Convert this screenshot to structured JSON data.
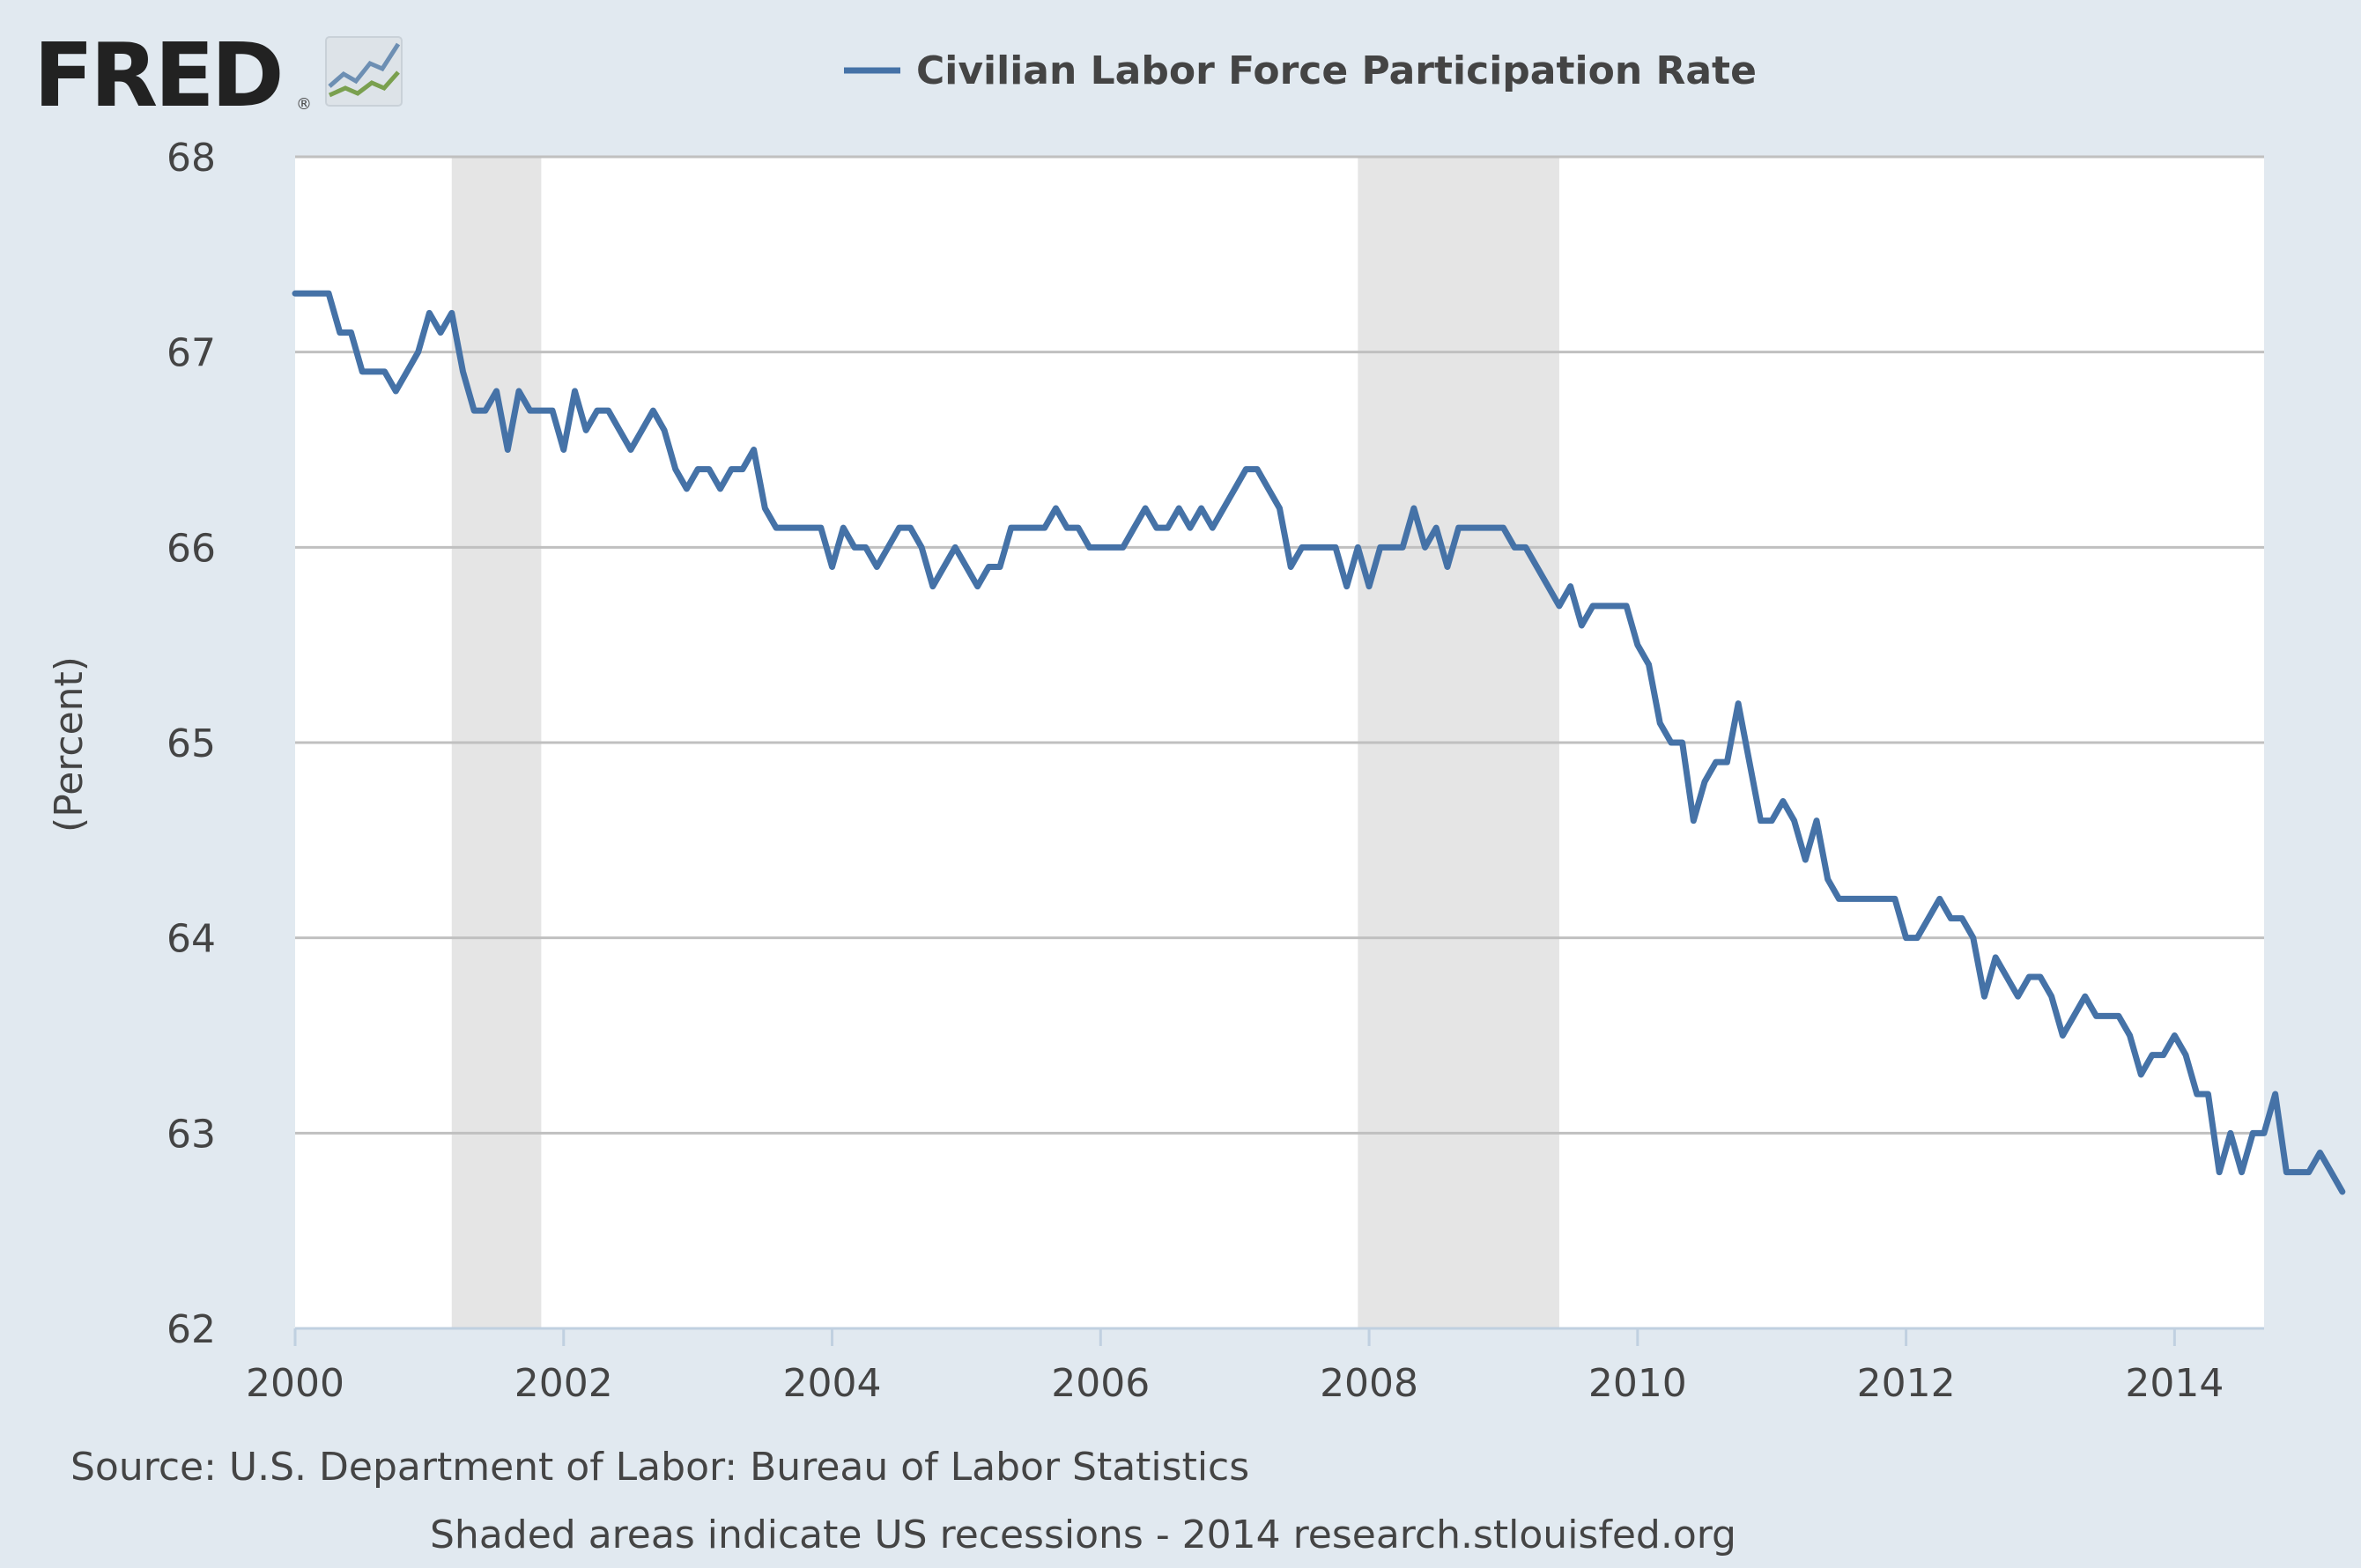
{
  "colors": {
    "background": "#e1e9f0",
    "plot_background": "#ffffff",
    "series": "#4572a7",
    "recession": "#e5e5e5",
    "grid": "#c0c0c0",
    "text": "#444444",
    "logo": "#222222"
  },
  "logo": {
    "text": "FRED",
    "mark": "®",
    "icon": "fred-chart-logo-icon"
  },
  "legend": {
    "label": "Civilian Labor Force Participation Rate",
    "placement": "top-center"
  },
  "footer": {
    "source": "Source: U.S. Department of Labor: Bureau of Labor Statistics",
    "note": "Shaded areas indicate US recessions - 2014 research.stlouisfed.org"
  },
  "chart_data": {
    "type": "line",
    "ylabel": "(Percent)",
    "xlabel": "",
    "ylim": [
      62,
      68
    ],
    "xlim": [
      2000.0,
      2014.667
    ],
    "x_ticks": [
      "2000",
      "2002",
      "2004",
      "2006",
      "2008",
      "2010",
      "2012",
      "2014"
    ],
    "y_ticks": [
      "62",
      "63",
      "64",
      "65",
      "66",
      "67",
      "68"
    ],
    "grid": "horizontal",
    "recessions": [
      {
        "start": "2001-03",
        "end": "2001-11"
      },
      {
        "start": "2007-12",
        "end": "2009-06"
      }
    ],
    "series": [
      {
        "name": "Civilian Labor Force Participation Rate",
        "start": "2000-01",
        "frequency": "monthly",
        "values": [
          67.3,
          67.3,
          67.3,
          67.3,
          67.1,
          67.1,
          66.9,
          66.9,
          66.9,
          66.8,
          66.9,
          67.0,
          67.2,
          67.1,
          67.2,
          66.9,
          66.7,
          66.7,
          66.8,
          66.5,
          66.8,
          66.7,
          66.7,
          66.7,
          66.5,
          66.8,
          66.6,
          66.7,
          66.7,
          66.6,
          66.5,
          66.6,
          66.7,
          66.6,
          66.4,
          66.3,
          66.4,
          66.4,
          66.3,
          66.4,
          66.4,
          66.5,
          66.2,
          66.1,
          66.1,
          66.1,
          66.1,
          66.1,
          65.9,
          66.1,
          66.0,
          66.0,
          65.9,
          66.0,
          66.1,
          66.1,
          66.0,
          65.8,
          65.9,
          66.0,
          65.9,
          65.8,
          65.9,
          65.9,
          66.1,
          66.1,
          66.1,
          66.1,
          66.2,
          66.1,
          66.1,
          66.0,
          66.0,
          66.0,
          66.0,
          66.1,
          66.2,
          66.1,
          66.1,
          66.2,
          66.1,
          66.2,
          66.1,
          66.2,
          66.3,
          66.4,
          66.4,
          66.3,
          66.2,
          65.9,
          66.0,
          66.0,
          66.0,
          66.0,
          65.8,
          66.0,
          65.8,
          66.0,
          66.0,
          66.0,
          66.2,
          66.0,
          66.1,
          65.9,
          66.1,
          66.1,
          66.1,
          66.1,
          66.1,
          66.0,
          66.0,
          65.9,
          65.8,
          65.7,
          65.8,
          65.6,
          65.7,
          65.7,
          65.7,
          65.7,
          65.5,
          65.4,
          65.1,
          65.0,
          65.0,
          64.6,
          64.8,
          64.9,
          64.9,
          65.2,
          64.9,
          64.6,
          64.6,
          64.7,
          64.6,
          64.4,
          64.6,
          64.3,
          64.2,
          64.2,
          64.2,
          64.2,
          64.2,
          64.2,
          64.0,
          64.0,
          64.1,
          64.2,
          64.1,
          64.1,
          64.0,
          63.7,
          63.9,
          63.8,
          63.7,
          63.8,
          63.8,
          63.7,
          63.5,
          63.6,
          63.7,
          63.6,
          63.6,
          63.6,
          63.5,
          63.3,
          63.4,
          63.4,
          63.5,
          63.4,
          63.2,
          63.2,
          62.8,
          63.0,
          62.8,
          63.0,
          63.0,
          63.2,
          62.8,
          62.8,
          62.8,
          62.9,
          62.8,
          62.7
        ]
      }
    ]
  }
}
